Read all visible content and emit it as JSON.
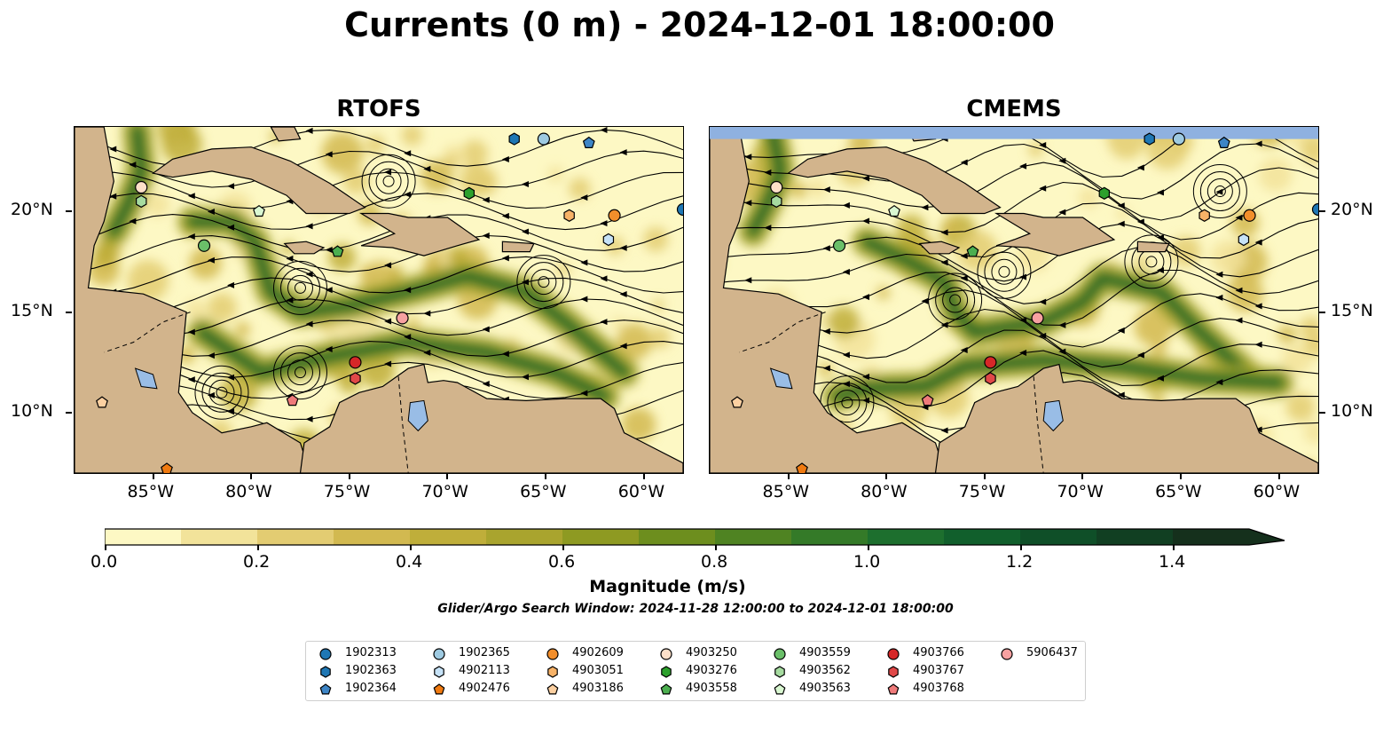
{
  "title": "Currents (0 m) - 2024-12-01 18:00:00",
  "panels": [
    {
      "name": "RTOFS"
    },
    {
      "name": "CMEMS"
    }
  ],
  "lon_ticks": [
    "85°W",
    "80°W",
    "75°W",
    "70°W",
    "65°W",
    "60°W"
  ],
  "lat_ticks": [
    "20°N",
    "15°N",
    "10°N"
  ],
  "colorbar": {
    "label": "Magnitude (m/s)",
    "ticks": [
      "0.0",
      "0.2",
      "0.4",
      "0.6",
      "0.8",
      "1.0",
      "1.2",
      "1.4"
    ],
    "min": 0.0,
    "max": 1.5,
    "step": 0.1,
    "colors": [
      "#fdf8c4",
      "#f2e39a",
      "#e3cc72",
      "#d2b950",
      "#bfae3a",
      "#a9a42e",
      "#8e9a22",
      "#6d8e1e",
      "#4f8322",
      "#347a28",
      "#1d6f2e",
      "#115f2c",
      "#0f4f28",
      "#113f22",
      "#15301c"
    ],
    "extend": "max"
  },
  "search_window": "Glider/Argo Search Window: 2024-11-28 12:00:00 to 2024-12-01 18:00:00",
  "map": {
    "lon_range": [
      -89,
      -58
    ],
    "lat_range": [
      7,
      24.2
    ],
    "land_color": "#d2b48c",
    "water_color": "#99bde6",
    "no_data_color": "#8fb1e0"
  },
  "floats": [
    {
      "id": "1902313",
      "marker": "circle",
      "color": "#1f77b4",
      "lon": -58.0,
      "lat": 20.1
    },
    {
      "id": "1902363",
      "marker": "hexagon",
      "color": "#1f77b4",
      "lon": -66.6,
      "lat": 23.6
    },
    {
      "id": "1902364",
      "marker": "pentagon",
      "color": "#3d85c6",
      "lon": -62.8,
      "lat": 23.4
    },
    {
      "id": "1902365",
      "marker": "circle",
      "color": "#9ecae1",
      "lon": -65.1,
      "lat": 23.6
    },
    {
      "id": "4902113",
      "marker": "hexagon",
      "color": "#c6e2f7",
      "lon": -61.8,
      "lat": 18.6
    },
    {
      "id": "4902476",
      "marker": "pentagon",
      "color": "#f07a10",
      "lon": -84.3,
      "lat": 7.2
    },
    {
      "id": "4902609",
      "marker": "circle",
      "color": "#f28e2b",
      "lon": -61.5,
      "lat": 19.8
    },
    {
      "id": "4903051",
      "marker": "hexagon",
      "color": "#f7b267",
      "lon": -63.8,
      "lat": 19.8
    },
    {
      "id": "4903186",
      "marker": "pentagon",
      "color": "#fcd0a1",
      "lon": -87.6,
      "lat": 10.5
    },
    {
      "id": "4903250",
      "marker": "circle",
      "color": "#fde0c9",
      "lon": -85.6,
      "lat": 21.2
    },
    {
      "id": "4903276",
      "marker": "hexagon",
      "color": "#2ca02c",
      "lon": -68.9,
      "lat": 20.9
    },
    {
      "id": "4903558",
      "marker": "pentagon",
      "color": "#4caf50",
      "lon": -75.6,
      "lat": 18.0
    },
    {
      "id": "4903559",
      "marker": "circle",
      "color": "#6abf69",
      "lon": -82.4,
      "lat": 18.3
    },
    {
      "id": "4903562",
      "marker": "hexagon",
      "color": "#a6dba0",
      "lon": -85.6,
      "lat": 20.5
    },
    {
      "id": "4903563",
      "marker": "pentagon",
      "color": "#d9f7d1",
      "lon": -79.6,
      "lat": 20.0
    },
    {
      "id": "4903766",
      "marker": "circle",
      "color": "#d62728",
      "lon": -74.7,
      "lat": 12.5
    },
    {
      "id": "4903767",
      "marker": "hexagon",
      "color": "#e04848",
      "lon": -74.7,
      "lat": 11.7
    },
    {
      "id": "4903768",
      "marker": "pentagon",
      "color": "#ef7a7a",
      "lon": -77.9,
      "lat": 10.6
    },
    {
      "id": "5906437",
      "marker": "circle",
      "color": "#f7a1a1",
      "lon": -72.3,
      "lat": 14.7
    }
  ]
}
